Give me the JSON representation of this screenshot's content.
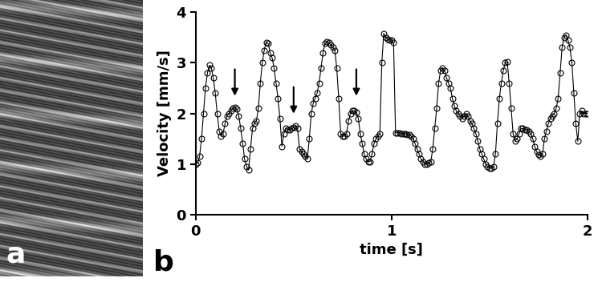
{
  "chart_data": [
    {
      "type": "image",
      "panel_label": "a"
    },
    {
      "type": "line",
      "panel_label": "b",
      "x_label": "time [s]",
      "y_label": "Velocity [mm/s]",
      "color": "#000000",
      "marker": "o",
      "line_style": "solid",
      "xlim": [
        0,
        2
      ],
      "xticks": [
        0,
        1,
        2
      ],
      "ylim": [
        0,
        4
      ],
      "yticks": [
        0,
        1,
        2,
        3,
        4
      ],
      "grid": false,
      "arrows": [
        {
          "x": 0.2,
          "y": 2.3
        },
        {
          "x": 0.5,
          "y": 1.95
        },
        {
          "x": 0.82,
          "y": 2.3
        }
      ],
      "x": [
        0.0,
        0.01,
        0.02,
        0.03,
        0.04,
        0.05,
        0.06,
        0.07,
        0.08,
        0.09,
        0.1,
        0.11,
        0.12,
        0.13,
        0.14,
        0.15,
        0.16,
        0.17,
        0.18,
        0.19,
        0.2,
        0.21,
        0.22,
        0.23,
        0.24,
        0.25,
        0.26,
        0.27,
        0.28,
        0.29,
        0.3,
        0.31,
        0.32,
        0.33,
        0.34,
        0.35,
        0.36,
        0.37,
        0.38,
        0.39,
        0.4,
        0.41,
        0.42,
        0.43,
        0.44,
        0.45,
        0.46,
        0.47,
        0.48,
        0.49,
        0.5,
        0.51,
        0.52,
        0.53,
        0.54,
        0.55,
        0.56,
        0.57,
        0.58,
        0.59,
        0.6,
        0.61,
        0.62,
        0.63,
        0.64,
        0.65,
        0.66,
        0.67,
        0.68,
        0.69,
        0.7,
        0.71,
        0.72,
        0.73,
        0.74,
        0.75,
        0.76,
        0.77,
        0.78,
        0.79,
        0.8,
        0.81,
        0.82,
        0.83,
        0.84,
        0.85,
        0.86,
        0.87,
        0.88,
        0.89,
        0.9,
        0.91,
        0.92,
        0.93,
        0.94,
        0.95,
        0.96,
        0.97,
        0.98,
        0.99,
        1.0,
        1.01,
        1.02,
        1.03,
        1.04,
        1.05,
        1.06,
        1.07,
        1.08,
        1.09,
        1.1,
        1.11,
        1.12,
        1.13,
        1.14,
        1.15,
        1.16,
        1.17,
        1.18,
        1.19,
        1.2,
        1.21,
        1.22,
        1.23,
        1.24,
        1.25,
        1.26,
        1.27,
        1.28,
        1.29,
        1.3,
        1.31,
        1.32,
        1.33,
        1.34,
        1.35,
        1.36,
        1.37,
        1.38,
        1.39,
        1.4,
        1.41,
        1.42,
        1.43,
        1.44,
        1.45,
        1.46,
        1.47,
        1.48,
        1.49,
        1.5,
        1.51,
        1.52,
        1.53,
        1.54,
        1.55,
        1.56,
        1.57,
        1.58,
        1.59,
        1.6,
        1.61,
        1.62,
        1.63,
        1.64,
        1.65,
        1.66,
        1.67,
        1.68,
        1.69,
        1.7,
        1.71,
        1.72,
        1.73,
        1.74,
        1.75,
        1.76,
        1.77,
        1.78,
        1.79,
        1.8,
        1.81,
        1.82,
        1.83,
        1.84,
        1.85,
        1.86,
        1.87,
        1.88,
        1.89,
        1.9,
        1.91,
        1.92,
        1.93,
        1.94,
        1.95,
        1.96,
        1.97,
        1.98,
        1.99,
        2.0
      ],
      "values": [
        1.0,
        1.02,
        1.15,
        1.5,
        2.0,
        2.5,
        2.8,
        2.95,
        2.9,
        2.7,
        2.4,
        2.0,
        1.65,
        1.55,
        1.6,
        1.8,
        1.95,
        2.0,
        2.05,
        2.1,
        2.12,
        2.08,
        1.95,
        1.7,
        1.4,
        1.1,
        0.95,
        0.88,
        1.3,
        1.7,
        1.8,
        1.85,
        2.1,
        2.6,
        3.0,
        3.25,
        3.4,
        3.38,
        3.2,
        3.1,
        2.9,
        2.6,
        2.3,
        1.9,
        1.35,
        1.6,
        1.7,
        1.68,
        1.68,
        1.7,
        1.72,
        1.75,
        1.7,
        1.3,
        1.25,
        1.2,
        1.15,
        1.1,
        1.5,
        2.0,
        2.2,
        2.3,
        2.4,
        2.6,
        2.9,
        3.2,
        3.38,
        3.42,
        3.4,
        3.35,
        3.3,
        3.25,
        2.9,
        2.3,
        1.6,
        1.55,
        1.55,
        1.6,
        1.85,
        2.0,
        2.05,
        2.05,
        2.02,
        1.9,
        1.6,
        1.4,
        1.2,
        1.1,
        1.05,
        1.05,
        1.2,
        1.4,
        1.5,
        1.55,
        1.6,
        3.0,
        3.58,
        3.5,
        3.47,
        3.45,
        3.45,
        3.4,
        1.62,
        1.62,
        1.62,
        1.6,
        1.6,
        1.6,
        1.58,
        1.58,
        1.55,
        1.5,
        1.4,
        1.3,
        1.2,
        1.1,
        1.05,
        1.0,
        1.0,
        1.02,
        1.05,
        1.3,
        1.7,
        2.1,
        2.6,
        2.85,
        2.9,
        2.85,
        2.7,
        2.6,
        2.5,
        2.3,
        2.15,
        2.05,
        2.0,
        1.95,
        1.9,
        1.95,
        2.0,
        1.95,
        1.85,
        1.8,
        1.7,
        1.6,
        1.45,
        1.3,
        1.2,
        1.1,
        1.0,
        0.95,
        0.92,
        0.92,
        0.95,
        1.2,
        1.8,
        2.3,
        2.6,
        2.85,
        3.0,
        3.02,
        2.6,
        2.1,
        1.6,
        1.45,
        1.5,
        1.6,
        1.7,
        1.7,
        1.68,
        1.68,
        1.65,
        1.6,
        1.5,
        1.35,
        1.25,
        1.18,
        1.15,
        1.2,
        1.5,
        1.65,
        1.8,
        1.9,
        1.95,
        2.0,
        2.1,
        2.3,
        2.8,
        3.3,
        3.5,
        3.55,
        3.45,
        3.3,
        3.0,
        2.4,
        1.8,
        1.45,
        2.0,
        2.05,
        2.0,
        2.0,
        2.0
      ]
    }
  ]
}
